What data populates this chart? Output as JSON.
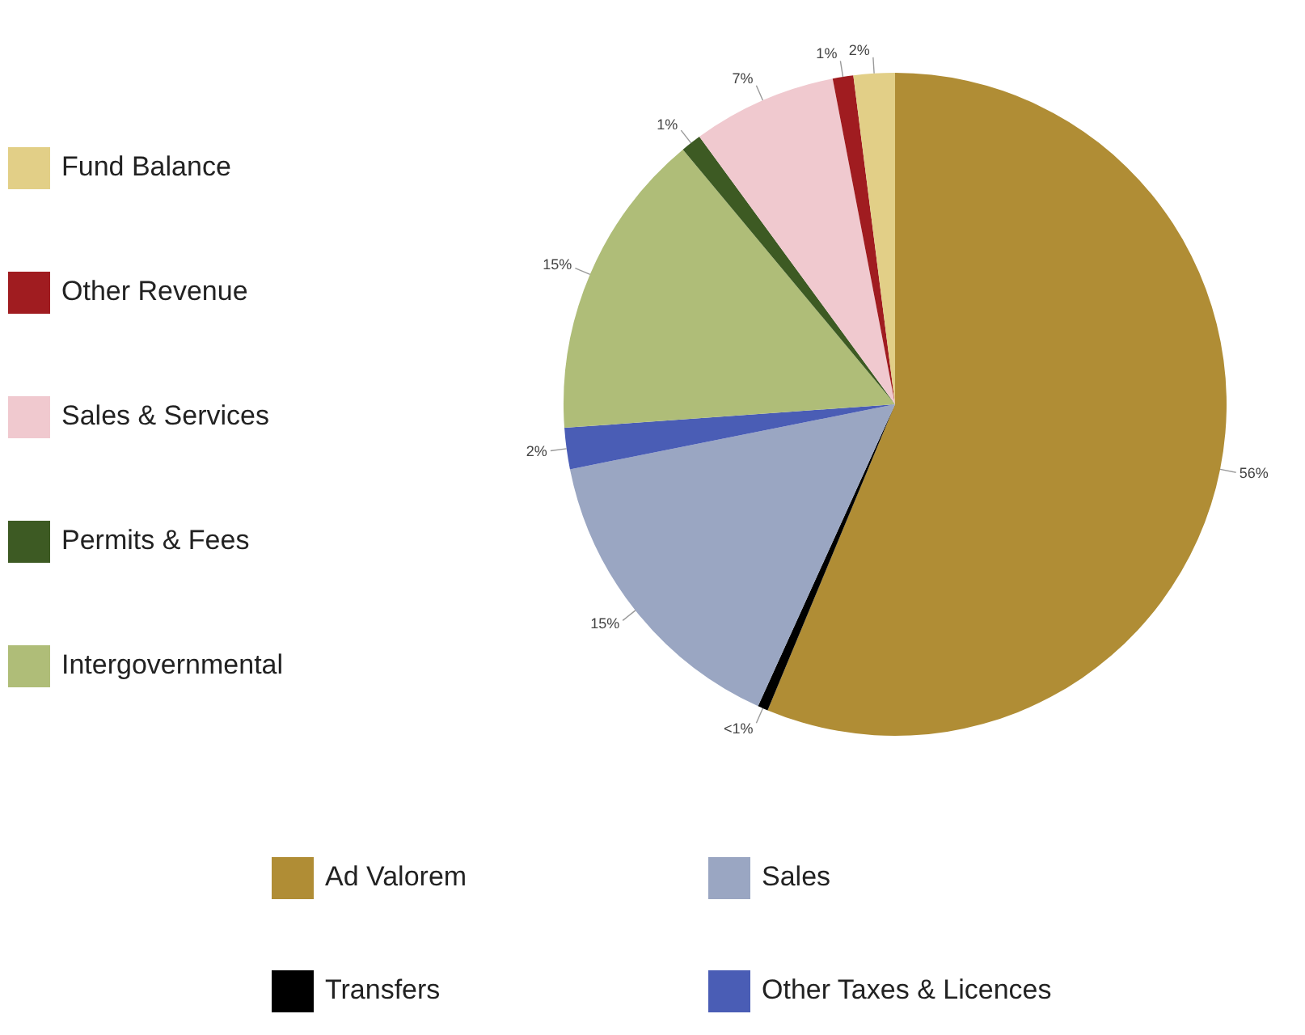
{
  "chart_data": {
    "type": "pie",
    "categories": [
      "Ad Valorem",
      "Transfers",
      "Sales",
      "Other Taxes & Licences",
      "Intergovernmental",
      "Permits & Fees",
      "Sales & Services",
      "Other Revenue",
      "Fund Balance"
    ],
    "values": [
      56,
      0.5,
      15,
      2,
      15,
      1,
      7,
      1,
      2
    ],
    "value_labels": [
      "56%",
      "<1%",
      "15%",
      "2%",
      "15%",
      "1%",
      "7%",
      "1%",
      "2%"
    ],
    "colors": [
      "#b08d35",
      "#000000",
      "#9aa6c2",
      "#4a5db5",
      "#afbd78",
      "#3d5a23",
      "#f0c9cf",
      "#a01c20",
      "#e2cf87"
    ],
    "legend": "left"
  }
}
